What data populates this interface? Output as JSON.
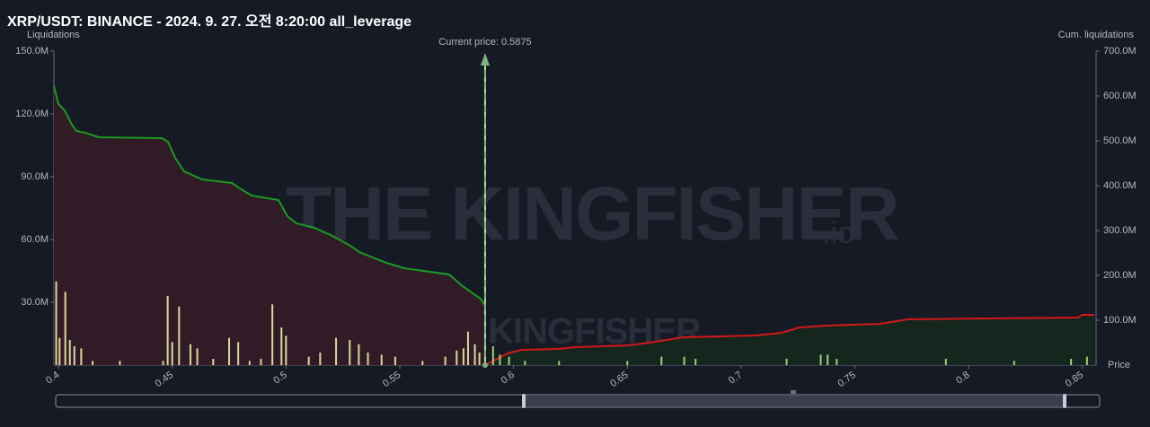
{
  "chart_data": {
    "type": "bar",
    "title": "XRP/USDT: BINANCE - 2024. 9. 27. 오전 8:20:00 all_leverage",
    "y_label": "Liquidations",
    "y2_label": "Cum. liquidations",
    "x_label": "Price",
    "annotation": "Current price: 0.5875",
    "current_price": 0.5875,
    "watermark": "THE KINGFISHER",
    "watermark_suffix": ".io",
    "xlim": [
      0.398,
      0.856
    ],
    "xticks": [
      0.4,
      0.45,
      0.5,
      0.55,
      0.6,
      0.65,
      0.7,
      0.75,
      0.8,
      0.85
    ],
    "ylim": [
      0,
      150000000
    ],
    "yticks": [
      {
        "value": 30000000,
        "label": "30.0M"
      },
      {
        "value": 60000000,
        "label": "60.0M"
      },
      {
        "value": 90000000,
        "label": "90.0M"
      },
      {
        "value": 120000000,
        "label": "120.0M"
      },
      {
        "value": 150000000,
        "label": "150.0M"
      }
    ],
    "y2lim": [
      0,
      700000000
    ],
    "y2ticks": [
      {
        "value": 100000000,
        "label": "100.0M"
      },
      {
        "value": 200000000,
        "label": "200.0M"
      },
      {
        "value": 300000000,
        "label": "300.0M"
      },
      {
        "value": 400000000,
        "label": "400.0M"
      },
      {
        "value": 500000000,
        "label": "500.0M"
      },
      {
        "value": 600000000,
        "label": "600.0M"
      },
      {
        "value": 700000000,
        "label": "700.0M"
      }
    ],
    "series": [
      {
        "type": "area",
        "axis": "y2",
        "color": "#1c9a22",
        "fill": "#301b26",
        "x": [
          0.398,
          0.4,
          0.4027,
          0.4059,
          0.4079,
          0.4118,
          0.4177,
          0.4454,
          0.4481,
          0.4513,
          0.4552,
          0.4631,
          0.4762,
          0.4809,
          0.4849,
          0.4967,
          0.5006,
          0.5046,
          0.5125,
          0.5204,
          0.5283,
          0.5322,
          0.5441,
          0.552,
          0.5717,
          0.5776,
          0.5855,
          0.5875
        ],
        "values": [
          622000000,
          582000000,
          568000000,
          536000000,
          522000000,
          518000000,
          508000000,
          506000000,
          498000000,
          462000000,
          432000000,
          414000000,
          406000000,
          390000000,
          378000000,
          368000000,
          332000000,
          316000000,
          306000000,
          288000000,
          266000000,
          252000000,
          228000000,
          216000000,
          202000000,
          176000000,
          148000000,
          132000000
        ]
      },
      {
        "type": "area",
        "axis": "y2",
        "color": "#d41818",
        "fill": "#15261f",
        "x": [
          0.5875,
          0.5974,
          0.6033,
          0.6191,
          0.627,
          0.6507,
          0.6625,
          0.6744,
          0.7059,
          0.7178,
          0.7257,
          0.7375,
          0.7612,
          0.773,
          0.8086,
          0.848,
          0.85,
          0.8552
        ],
        "values": [
          0,
          26000000,
          34000000,
          36000000,
          40000000,
          44000000,
          52000000,
          62000000,
          66000000,
          72000000,
          84000000,
          88000000,
          92000000,
          102000000,
          104000000,
          106000000,
          112000000,
          112000000
        ]
      },
      {
        "type": "bar",
        "color": "#d9d99b",
        "x": [
          0.399,
          0.4005,
          0.403,
          0.405,
          0.407,
          0.41,
          0.415,
          0.427,
          0.446,
          0.448,
          0.45,
          0.453,
          0.458,
          0.461,
          0.468,
          0.475,
          0.479,
          0.484,
          0.489,
          0.494,
          0.498,
          0.5,
          0.51,
          0.515,
          0.522,
          0.528,
          0.532,
          0.536,
          0.542,
          0.548,
          0.56,
          0.57,
          0.575,
          0.578,
          0.58,
          0.583,
          0.585
        ],
        "values": [
          40000000,
          13000000,
          35000000,
          12000000,
          9000000,
          8000000,
          2000000,
          2000000,
          2000000,
          33000000,
          11000000,
          28000000,
          10000000,
          8000000,
          3000000,
          13000000,
          11000000,
          2000000,
          3000000,
          29000000,
          18000000,
          14000000,
          4000000,
          6000000,
          13000000,
          12000000,
          10000000,
          6000000,
          5000000,
          4000000,
          2000000,
          4000000,
          7000000,
          8000000,
          16000000,
          10000000,
          6000000
        ]
      },
      {
        "type": "bar",
        "color": "#a6e8a0",
        "x": [
          0.5875
        ],
        "values": [
          145000000
        ]
      },
      {
        "type": "bar",
        "color": "#9fd07a",
        "x": [
          0.591,
          0.594,
          0.598,
          0.605,
          0.62,
          0.65,
          0.665,
          0.675,
          0.68,
          0.72,
          0.735,
          0.738,
          0.742,
          0.79,
          0.82,
          0.845,
          0.852
        ],
        "values": [
          9000000,
          5000000,
          4000000,
          2000000,
          2000000,
          2000000,
          4000000,
          4000000,
          3000000,
          3000000,
          5000000,
          5000000,
          3000000,
          3000000,
          2000000,
          3000000,
          4000000
        ]
      }
    ]
  }
}
